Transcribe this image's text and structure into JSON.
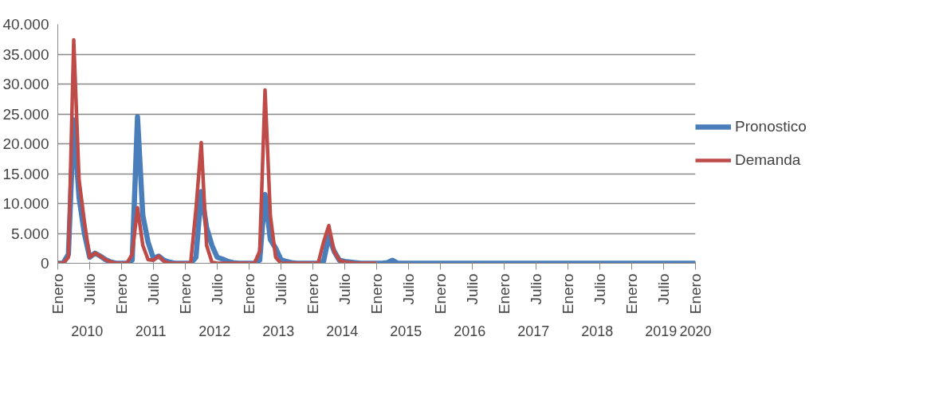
{
  "chart_data": {
    "type": "line",
    "categories": [
      "Enero",
      null,
      null,
      null,
      null,
      null,
      "Julio",
      null,
      null,
      null,
      null,
      null,
      "Enero",
      null,
      null,
      null,
      null,
      null,
      "Julio",
      null,
      null,
      null,
      null,
      null,
      "Enero",
      null,
      null,
      null,
      null,
      null,
      "Julio",
      null,
      null,
      null,
      null,
      null,
      "Enero",
      null,
      null,
      null,
      null,
      null,
      "Julio",
      null,
      null,
      null,
      null,
      null,
      "Enero",
      null,
      null,
      null,
      null,
      null,
      "Julio",
      null,
      null,
      null,
      null,
      null,
      "Enero",
      null,
      null,
      null,
      null,
      null,
      "Julio",
      null,
      null,
      null,
      null,
      null,
      "Enero",
      null,
      null,
      null,
      null,
      null,
      "Julio",
      null,
      null,
      null,
      null,
      null,
      "Enero",
      null,
      null,
      null,
      null,
      null,
      "Julio",
      null,
      null,
      null,
      null,
      null,
      "Enero",
      null,
      null,
      null,
      null,
      null,
      "Julio",
      null,
      null,
      null,
      null,
      null,
      "Enero",
      null,
      null,
      null,
      null,
      null,
      "Julio",
      null,
      null,
      null,
      null,
      null,
      "Enero"
    ],
    "annotations": [
      "2010",
      "2011",
      "2012",
      "2013",
      "2014",
      "2015",
      "2016",
      "2017",
      "2018",
      "2019",
      "2020"
    ],
    "series": [
      {
        "name": "Pronostico",
        "color": "#4a7ebb",
        "values": [
          0,
          0,
          1500,
          24000,
          11000,
          5000,
          1000,
          1700,
          1200,
          600,
          200,
          0,
          0,
          0,
          500,
          24500,
          8000,
          3500,
          800,
          1200,
          500,
          200,
          0,
          0,
          0,
          0,
          1000,
          12000,
          6000,
          3000,
          1000,
          700,
          300,
          100,
          0,
          0,
          0,
          0,
          500,
          11500,
          4000,
          2500,
          600,
          300,
          100,
          0,
          0,
          0,
          0,
          0,
          300,
          4500,
          2000,
          500,
          300,
          200,
          100,
          0,
          0,
          0,
          0,
          0,
          100,
          500,
          0,
          0,
          0,
          0,
          0,
          0,
          0,
          0,
          0,
          0,
          0,
          0,
          0,
          0,
          0,
          0,
          0,
          0,
          0,
          0,
          0,
          0,
          0,
          0,
          0,
          0,
          0,
          0,
          0,
          0,
          0,
          0,
          0,
          0,
          0,
          0,
          0,
          0,
          0,
          0,
          0,
          0,
          0,
          0,
          0,
          0,
          0,
          0,
          0,
          0,
          0,
          0,
          0,
          0,
          0,
          0,
          0
        ]
      },
      {
        "name": "Demanda",
        "color": "#be4b48",
        "values": [
          0,
          0,
          1000,
          37400,
          14000,
          7000,
          1000,
          1700,
          1200,
          600,
          200,
          0,
          0,
          0,
          1500,
          9300,
          3000,
          600,
          500,
          1200,
          300,
          0,
          0,
          0,
          0,
          0,
          9000,
          20200,
          3000,
          200,
          0,
          0,
          0,
          0,
          0,
          0,
          0,
          0,
          2000,
          29000,
          8000,
          1000,
          0,
          0,
          0,
          0,
          0,
          0,
          0,
          0,
          3500,
          6300,
          2000,
          500,
          200,
          100,
          0,
          0,
          0,
          0,
          0,
          null,
          null,
          null,
          null,
          null,
          null,
          null,
          null,
          null,
          null,
          null,
          null,
          null,
          null,
          null,
          null,
          null,
          null,
          null,
          null,
          null,
          null,
          null,
          null,
          null,
          null,
          null,
          null,
          null,
          null,
          null,
          null,
          null,
          null,
          null,
          null,
          null,
          null,
          null,
          null,
          null,
          null,
          null,
          null,
          null,
          null,
          null,
          null,
          null,
          null,
          null,
          null,
          null,
          null,
          null,
          null,
          null,
          null,
          null,
          null
        ]
      }
    ],
    "ylim": [
      0,
      40000
    ],
    "yticks": [
      0,
      {
        "value": 5000,
        "label": "5.000"
      },
      {
        "value": 10000,
        "label": "10.000"
      },
      {
        "value": 15000,
        "label": "15.000"
      },
      {
        "value": 20000,
        "label": "20.000"
      },
      {
        "value": 25000,
        "label": "25.000"
      },
      {
        "value": 30000,
        "label": "30.000"
      },
      {
        "value": 35000,
        "label": "35.000"
      },
      {
        "value": 40000,
        "label": "40.000"
      }
    ],
    "grid": "y",
    "legend": "right",
    "marker": "none",
    "line_style": "solid"
  }
}
